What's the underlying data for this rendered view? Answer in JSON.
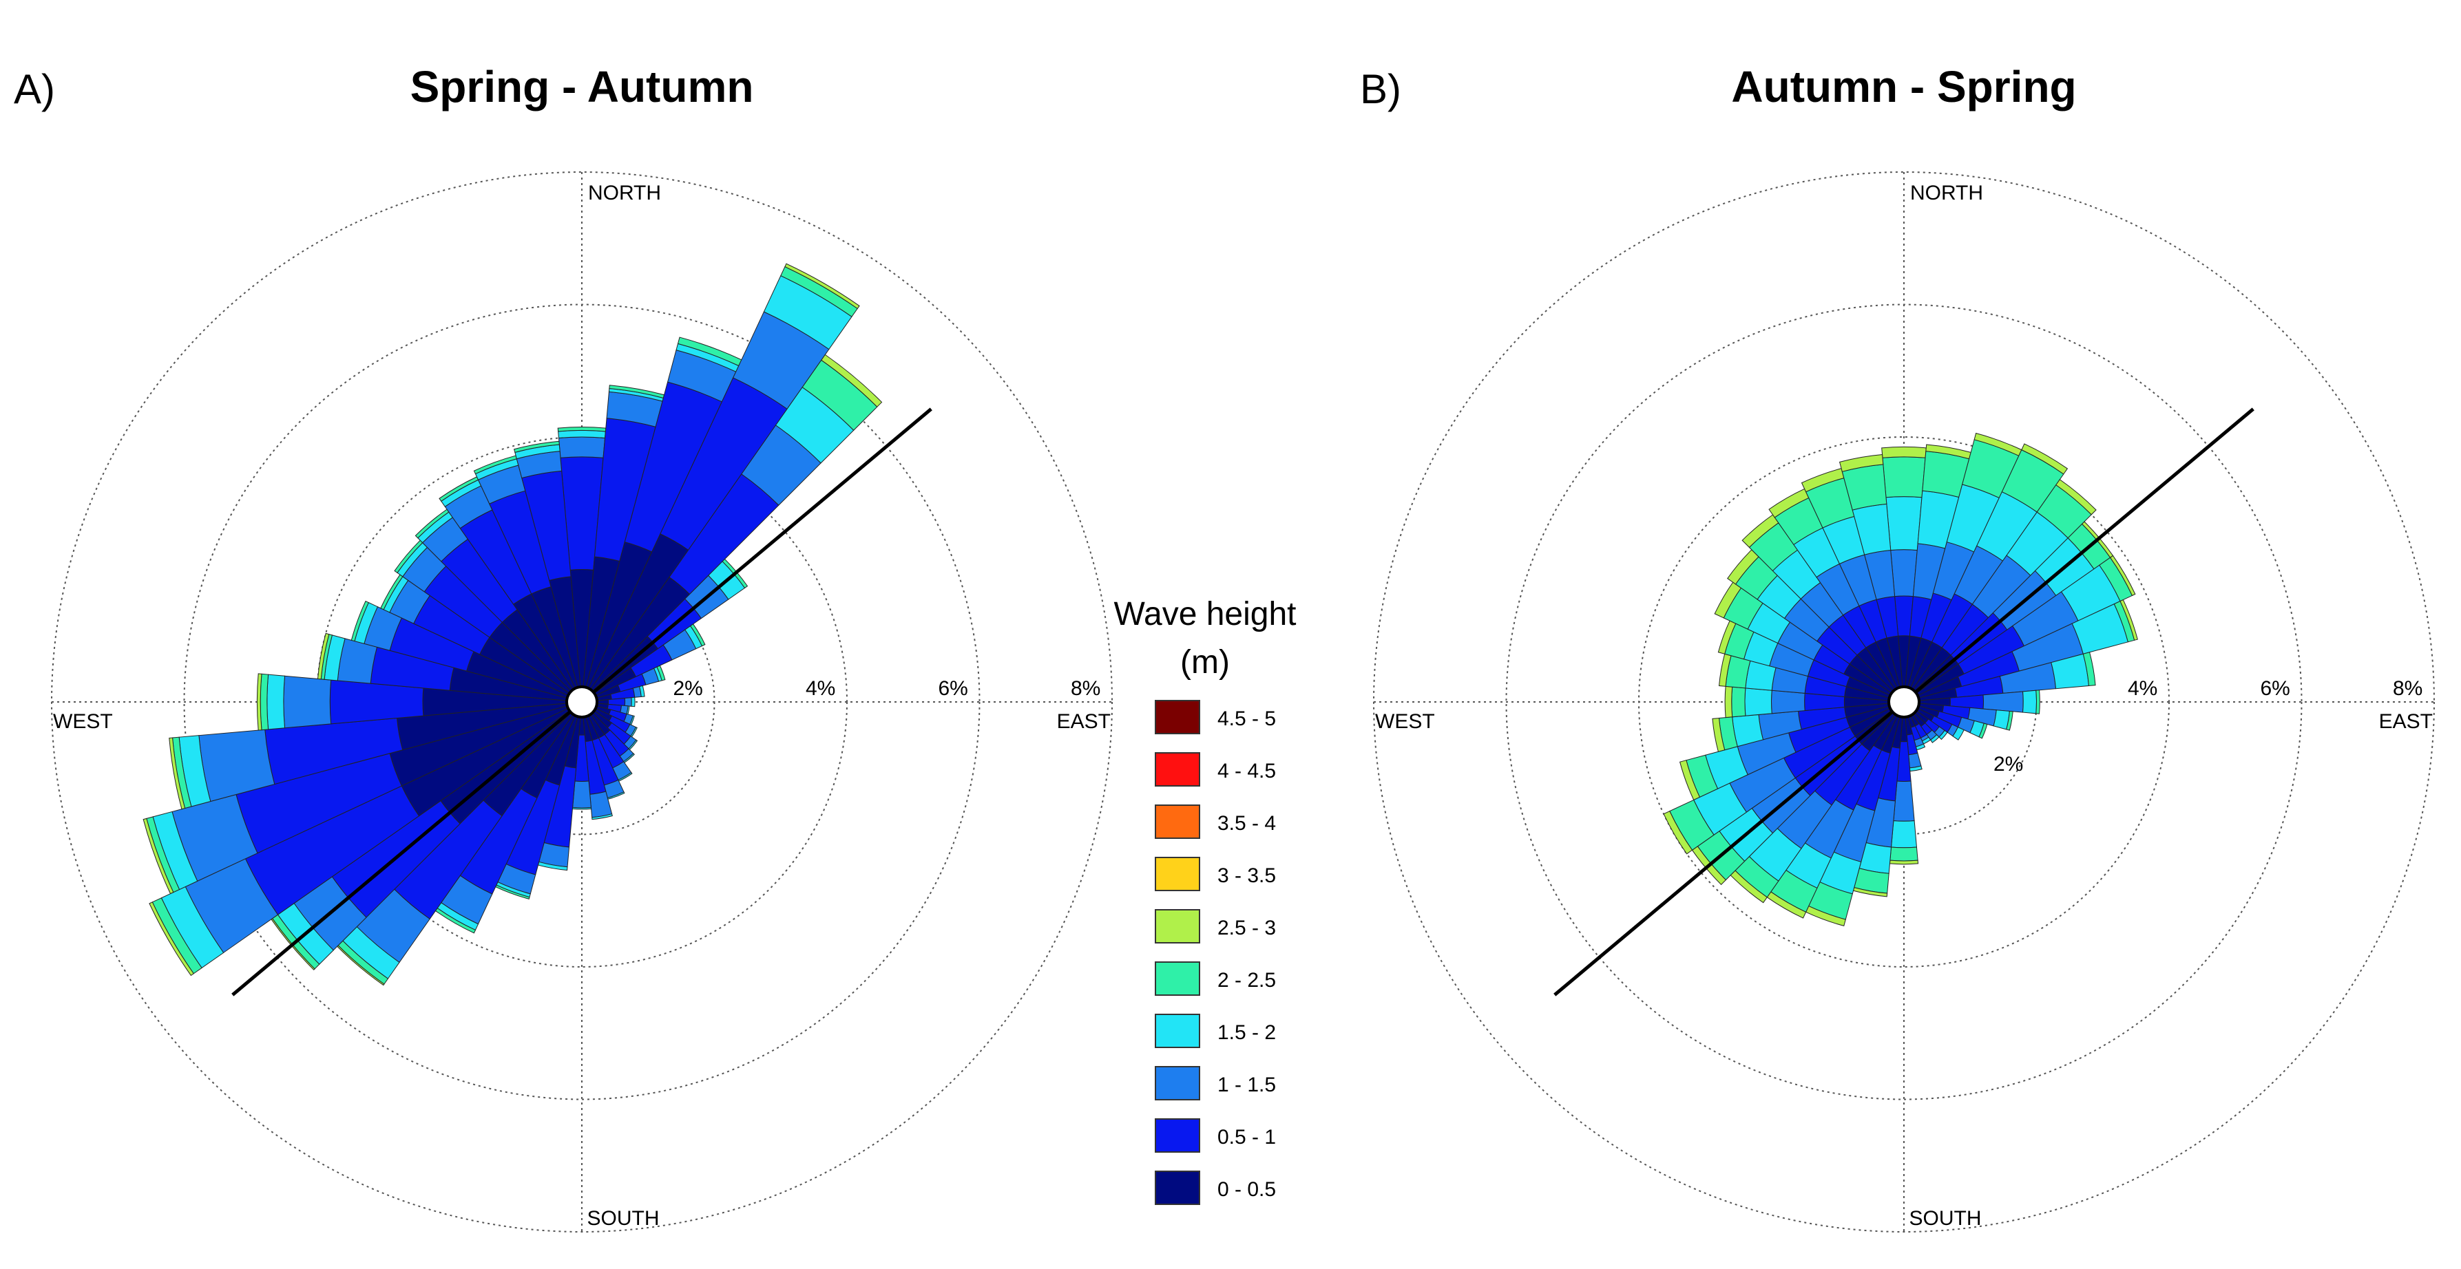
{
  "chart_data": [
    {
      "type": "polar-bar",
      "panel": "A)",
      "title": "Spring - Autumn",
      "directions": {
        "north": "NORTH",
        "south": "SOUTH",
        "east": "EAST",
        "west": "WEST"
      },
      "rings": [
        {
          "value": 2,
          "label": "2%"
        },
        {
          "value": 4,
          "label": "4%"
        },
        {
          "value": 6,
          "label": "6%"
        },
        {
          "value": 8,
          "label": "8%"
        }
      ],
      "rmax": 8,
      "axis_line_bearing_deg": 50,
      "sector_width_deg": 10,
      "note": "bearings in degrees clockwise from north; values are cumulative percent at the outer edge of each wave-height class (classes 0-0.5, 0.5-1, 1-1.5, 1.5-2, 2-2.5, 2.5-3)",
      "sectors": [
        {
          "dir": 0,
          "cum": [
            2.0,
            3.7,
            4.0,
            4.1,
            4.15,
            4.15
          ]
        },
        {
          "dir": 10,
          "cum": [
            2.2,
            4.3,
            4.7,
            4.75,
            4.8,
            4.8
          ]
        },
        {
          "dir": 20,
          "cum": [
            2.5,
            5.0,
            5.5,
            5.6,
            5.7,
            5.7
          ]
        },
        {
          "dir": 30,
          "cum": [
            2.8,
            5.4,
            6.5,
            7.1,
            7.25,
            7.3
          ]
        },
        {
          "dir": 40,
          "cum": [
            2.3,
            4.2,
            5.1,
            5.8,
            6.3,
            6.4
          ]
        },
        {
          "dir": 50,
          "cum": [
            1.4,
            2.2,
            2.7,
            3.0,
            3.05,
            3.05
          ]
        },
        {
          "dir": 60,
          "cum": [
            0.9,
            1.5,
            1.9,
            2.0,
            2.05,
            2.05
          ]
        },
        {
          "dir": 70,
          "cum": [
            0.6,
            1.0,
            1.2,
            1.25,
            1.3,
            1.3
          ]
        },
        {
          "dir": 80,
          "cum": [
            0.45,
            0.8,
            0.9,
            0.95,
            0.95,
            0.95
          ]
        },
        {
          "dir": 90,
          "cum": [
            0.4,
            0.65,
            0.75,
            0.8,
            0.8,
            0.8
          ]
        },
        {
          "dir": 100,
          "cum": [
            0.4,
            0.6,
            0.7,
            0.72,
            0.72,
            0.72
          ]
        },
        {
          "dir": 110,
          "cum": [
            0.45,
            0.7,
            0.8,
            0.82,
            0.82,
            0.82
          ]
        },
        {
          "dir": 120,
          "cum": [
            0.5,
            0.8,
            0.9,
            0.92,
            0.92,
            0.92
          ]
        },
        {
          "dir": 130,
          "cum": [
            0.55,
            0.9,
            1.0,
            1.02,
            1.02,
            1.02
          ]
        },
        {
          "dir": 140,
          "cum": [
            0.6,
            1.0,
            1.1,
            1.12,
            1.12,
            1.12
          ]
        },
        {
          "dir": 150,
          "cum": [
            0.6,
            1.1,
            1.3,
            1.32,
            1.32,
            1.32
          ]
        },
        {
          "dir": 160,
          "cum": [
            0.6,
            1.3,
            1.5,
            1.52,
            1.52,
            1.52
          ]
        },
        {
          "dir": 170,
          "cum": [
            0.6,
            1.4,
            1.75,
            1.78,
            1.78,
            1.78
          ]
        },
        {
          "dir": 180,
          "cum": [
            0.5,
            1.2,
            1.6,
            1.62,
            1.62,
            1.62
          ]
        },
        {
          "dir": 190,
          "cum": [
            1.0,
            2.2,
            2.5,
            2.55,
            2.55,
            2.55
          ]
        },
        {
          "dir": 200,
          "cum": [
            1.3,
            2.7,
            3.0,
            3.05,
            3.08,
            3.08
          ]
        },
        {
          "dir": 210,
          "cum": [
            1.6,
            3.2,
            3.7,
            3.8,
            3.85,
            3.85
          ]
        },
        {
          "dir": 220,
          "cum": [
            2.1,
            4.0,
            4.8,
            5.1,
            5.2,
            5.22
          ]
        },
        {
          "dir": 230,
          "cum": [
            2.6,
            4.6,
            5.3,
            5.6,
            5.7,
            5.72
          ]
        },
        {
          "dir": 240,
          "cum": [
            3.0,
            5.6,
            6.6,
            7.0,
            7.15,
            7.2
          ]
        },
        {
          "dir": 250,
          "cum": [
            3.0,
            5.4,
            6.4,
            6.7,
            6.8,
            6.85
          ]
        },
        {
          "dir": 260,
          "cum": [
            2.8,
            4.8,
            5.8,
            6.1,
            6.2,
            6.25
          ]
        },
        {
          "dir": 270,
          "cum": [
            2.4,
            3.8,
            4.5,
            4.75,
            4.85,
            4.9
          ]
        },
        {
          "dir": 280,
          "cum": [
            2.0,
            3.2,
            3.7,
            3.9,
            3.95,
            4.0
          ]
        },
        {
          "dir": 290,
          "cum": [
            1.8,
            3.0,
            3.4,
            3.55,
            3.6,
            3.6
          ]
        },
        {
          "dir": 300,
          "cum": [
            1.7,
            2.8,
            3.2,
            3.3,
            3.35,
            3.35
          ]
        },
        {
          "dir": 310,
          "cum": [
            1.7,
            2.9,
            3.3,
            3.4,
            3.45,
            3.45
          ]
        },
        {
          "dir": 320,
          "cum": [
            1.7,
            3.0,
            3.4,
            3.5,
            3.55,
            3.55
          ]
        },
        {
          "dir": 330,
          "cum": [
            1.8,
            3.2,
            3.6,
            3.7,
            3.75,
            3.75
          ]
        },
        {
          "dir": 340,
          "cum": [
            1.8,
            3.3,
            3.7,
            3.8,
            3.85,
            3.85
          ]
        },
        {
          "dir": 350,
          "cum": [
            1.9,
            3.5,
            3.8,
            3.9,
            3.95,
            3.95
          ]
        }
      ]
    },
    {
      "type": "polar-bar",
      "panel": "B)",
      "title": "Autumn - Spring",
      "directions": {
        "north": "NORTH",
        "south": "SOUTH",
        "east": "EAST",
        "west": "WEST"
      },
      "rings": [
        {
          "value": 2,
          "label": "2%"
        },
        {
          "value": 4,
          "label": "4%"
        },
        {
          "value": 6,
          "label": "6%"
        },
        {
          "value": 8,
          "label": "8%"
        }
      ],
      "rmax": 8,
      "axis_line_bearing_deg": 50,
      "sector_width_deg": 10,
      "note": "bearings in degrees clockwise from north; values are cumulative percent at the outer edge of each wave-height class (classes 0-0.5, 0.5-1, 1-1.5, 1.5-2, 2-2.5, 2.5-3)",
      "sectors": [
        {
          "dir": 0,
          "cum": [
            1.0,
            1.6,
            2.3,
            3.1,
            3.7,
            3.85
          ]
        },
        {
          "dir": 10,
          "cum": [
            1.0,
            1.6,
            2.4,
            3.2,
            3.8,
            3.9
          ]
        },
        {
          "dir": 20,
          "cum": [
            1.0,
            1.7,
            2.5,
            3.4,
            4.1,
            4.2
          ]
        },
        {
          "dir": 30,
          "cum": [
            1.0,
            1.8,
            2.6,
            3.5,
            4.2,
            4.3
          ]
        },
        {
          "dir": 40,
          "cum": [
            1.0,
            1.8,
            2.7,
            3.5,
            4.0,
            4.1
          ]
        },
        {
          "dir": 50,
          "cum": [
            1.0,
            1.9,
            2.8,
            3.5,
            3.8,
            3.85
          ]
        },
        {
          "dir": 60,
          "cum": [
            1.0,
            2.0,
            2.9,
            3.6,
            3.8,
            3.85
          ]
        },
        {
          "dir": 70,
          "cum": [
            0.9,
            1.8,
            2.8,
            3.5,
            3.6,
            3.65
          ]
        },
        {
          "dir": 80,
          "cum": [
            0.8,
            1.5,
            2.3,
            2.8,
            2.9,
            2.9
          ]
        },
        {
          "dir": 90,
          "cum": [
            0.7,
            1.2,
            1.8,
            2.0,
            2.05,
            2.05
          ]
        },
        {
          "dir": 100,
          "cum": [
            0.6,
            1.0,
            1.4,
            1.6,
            1.65,
            1.65
          ]
        },
        {
          "dir": 110,
          "cum": [
            0.55,
            0.9,
            1.1,
            1.25,
            1.3,
            1.3
          ]
        },
        {
          "dir": 120,
          "cum": [
            0.5,
            0.8,
            0.9,
            1.0,
            1.0,
            1.0
          ]
        },
        {
          "dir": 130,
          "cum": [
            0.45,
            0.65,
            0.75,
            0.8,
            0.8,
            0.8
          ]
        },
        {
          "dir": 140,
          "cum": [
            0.45,
            0.6,
            0.7,
            0.75,
            0.75,
            0.75
          ]
        },
        {
          "dir": 150,
          "cum": [
            0.4,
            0.6,
            0.65,
            0.7,
            0.7,
            0.7
          ]
        },
        {
          "dir": 160,
          "cum": [
            0.4,
            0.6,
            0.7,
            0.75,
            0.75,
            0.75
          ]
        },
        {
          "dir": 170,
          "cum": [
            0.5,
            0.8,
            1.0,
            1.05,
            1.05,
            1.05
          ]
        },
        {
          "dir": 180,
          "cum": [
            0.6,
            1.2,
            1.8,
            2.2,
            2.4,
            2.45
          ]
        },
        {
          "dir": 190,
          "cum": [
            0.7,
            1.5,
            2.2,
            2.6,
            2.9,
            2.95
          ]
        },
        {
          "dir": 200,
          "cum": [
            0.8,
            1.7,
            2.5,
            3.0,
            3.4,
            3.5
          ]
        },
        {
          "dir": 210,
          "cum": [
            0.8,
            1.8,
            2.6,
            3.1,
            3.5,
            3.6
          ]
        },
        {
          "dir": 220,
          "cum": [
            0.9,
            1.9,
            2.7,
            3.3,
            3.6,
            3.7
          ]
        },
        {
          "dir": 230,
          "cum": [
            0.9,
            2.0,
            2.8,
            3.4,
            3.8,
            3.9
          ]
        },
        {
          "dir": 240,
          "cum": [
            0.9,
            2.0,
            2.9,
            3.5,
            3.9,
            4.0
          ]
        },
        {
          "dir": 250,
          "cum": [
            0.9,
            1.8,
            2.6,
            3.1,
            3.4,
            3.5
          ]
        },
        {
          "dir": 260,
          "cum": [
            0.9,
            1.6,
            2.2,
            2.6,
            2.8,
            2.9
          ]
        },
        {
          "dir": 270,
          "cum": [
            0.9,
            1.5,
            2.0,
            2.4,
            2.6,
            2.7
          ]
        },
        {
          "dir": 280,
          "cum": [
            0.9,
            1.5,
            2.0,
            2.4,
            2.7,
            2.8
          ]
        },
        {
          "dir": 290,
          "cum": [
            0.9,
            1.5,
            2.1,
            2.5,
            2.8,
            2.9
          ]
        },
        {
          "dir": 300,
          "cum": [
            1.0,
            1.5,
            2.1,
            2.6,
            3.0,
            3.15
          ]
        },
        {
          "dir": 310,
          "cum": [
            1.0,
            1.6,
            2.2,
            2.7,
            3.1,
            3.25
          ]
        },
        {
          "dir": 320,
          "cum": [
            1.0,
            1.6,
            2.2,
            2.8,
            3.3,
            3.45
          ]
        },
        {
          "dir": 330,
          "cum": [
            1.0,
            1.6,
            2.3,
            2.9,
            3.4,
            3.55
          ]
        },
        {
          "dir": 340,
          "cum": [
            1.0,
            1.6,
            2.3,
            2.9,
            3.5,
            3.65
          ]
        },
        {
          "dir": 350,
          "cum": [
            1.0,
            1.6,
            2.3,
            3.0,
            3.6,
            3.75
          ]
        }
      ]
    }
  ],
  "legend": {
    "title_line1": "Wave height",
    "title_line2": "(m)",
    "items": [
      {
        "label": "4.5 - 5",
        "color": "#7a0000"
      },
      {
        "label": "4 - 4.5",
        "color": "#ff1010"
      },
      {
        "label": "3.5 - 4",
        "color": "#ff6a10"
      },
      {
        "label": "3 - 3.5",
        "color": "#ffd21a"
      },
      {
        "label": "2.5 - 3",
        "color": "#b0f04a"
      },
      {
        "label": "2 - 2.5",
        "color": "#2ff0a8"
      },
      {
        "label": "1.5 - 2",
        "color": "#22e4f6"
      },
      {
        "label": "1 - 1.5",
        "color": "#1e7eef"
      },
      {
        "label": "0.5 - 1",
        "color": "#0818f0"
      },
      {
        "label": "0 - 0.5",
        "color": "#000a80"
      }
    ]
  },
  "class_colors": [
    "#000a80",
    "#0818f0",
    "#1e7eef",
    "#22e4f6",
    "#2ff0a8",
    "#b0f04a"
  ]
}
